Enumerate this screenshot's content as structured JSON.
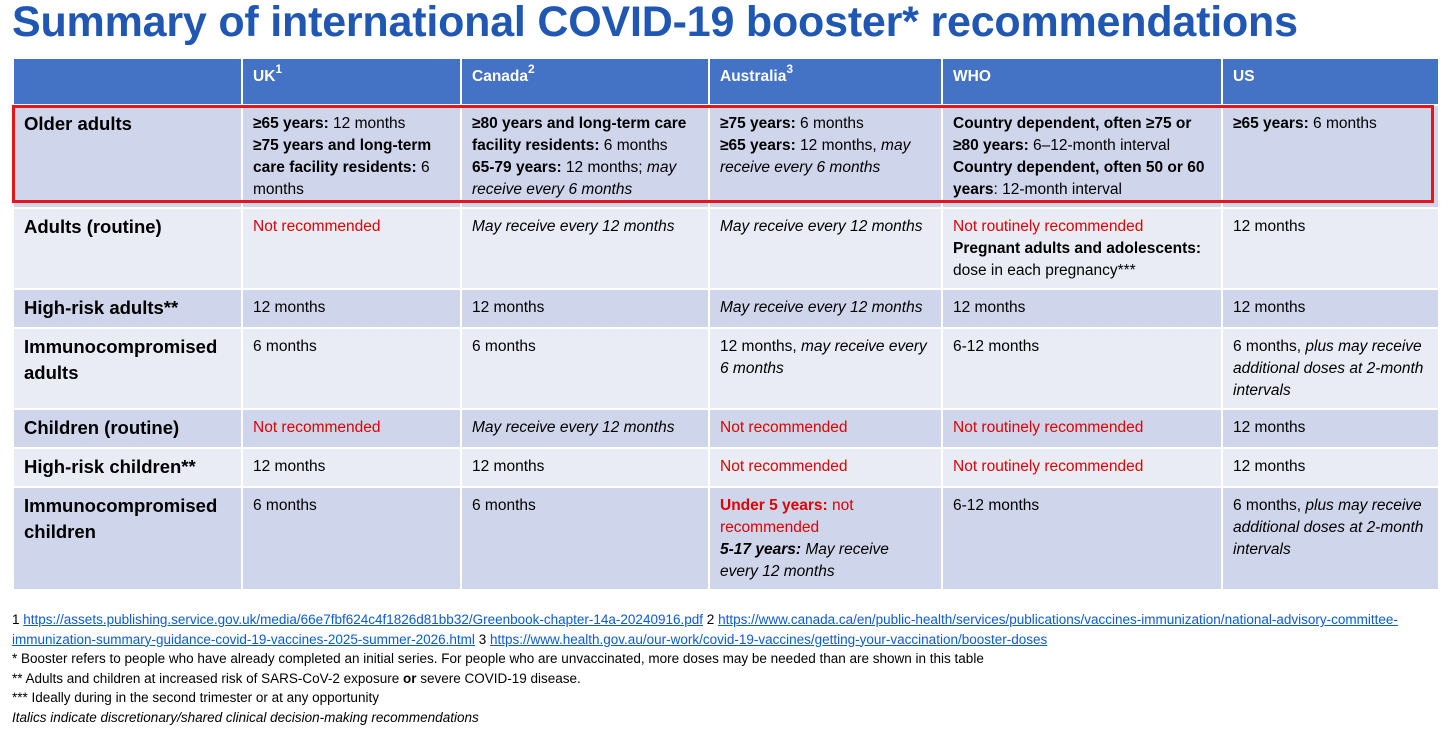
{
  "title": "Summary of international COVID-19 booster* recommendations",
  "columns": [
    {
      "label": "",
      "sup": ""
    },
    {
      "label": "UK",
      "sup": "1"
    },
    {
      "label": "Canada",
      "sup": "2"
    },
    {
      "label": "Australia",
      "sup": "3"
    },
    {
      "label": "WHO",
      "sup": ""
    },
    {
      "label": "US",
      "sup": ""
    }
  ],
  "rows": [
    {
      "label": "Older adults",
      "cells": [
        [
          [
            {
              "t": "≥65 years:",
              "s": "b"
            },
            {
              "t": " 12 months",
              "s": ""
            }
          ],
          [
            {
              "t": "≥75 years and long-term care facility residents:",
              "s": "b"
            },
            {
              "t": " 6 months",
              "s": ""
            }
          ]
        ],
        [
          [
            {
              "t": "≥80 years and long-term care facility residents:",
              "s": "b"
            },
            {
              "t": " 6 months",
              "s": ""
            }
          ],
          [
            {
              "t": "65-79 years:",
              "s": "b"
            },
            {
              "t": " 12 months; ",
              "s": ""
            },
            {
              "t": "may receive every 6 months",
              "s": "i"
            }
          ]
        ],
        [
          [
            {
              "t": "≥75 years:",
              "s": "b"
            },
            {
              "t": " 6 months",
              "s": ""
            }
          ],
          [
            {
              "t": "≥65 years:",
              "s": "b"
            },
            {
              "t": " 12 months, ",
              "s": ""
            },
            {
              "t": "may receive every 6 months",
              "s": "i"
            }
          ]
        ],
        [
          [
            {
              "t": "Country dependent, often ≥75 or ≥80 years:",
              "s": "b"
            },
            {
              "t": " 6–12-month interval",
              "s": ""
            }
          ],
          [
            {
              "t": "Country dependent, often 50 or 60 years",
              "s": "b"
            },
            {
              "t": ": 12-month interval",
              "s": ""
            }
          ]
        ],
        [
          [
            {
              "t": "≥65 years:",
              "s": "b"
            },
            {
              "t": " 6 months",
              "s": ""
            }
          ]
        ]
      ]
    },
    {
      "label": "Adults (routine)",
      "cells": [
        [
          [
            {
              "t": "Not recommended",
              "s": "red"
            }
          ]
        ],
        [
          [
            {
              "t": "May receive every 12 months",
              "s": "i"
            }
          ]
        ],
        [
          [
            {
              "t": "May receive every 12 months",
              "s": "i"
            }
          ]
        ],
        [
          [
            {
              "t": "Not routinely recommended",
              "s": "red"
            }
          ],
          [
            {
              "t": "Pregnant adults and adolescents:",
              "s": "b"
            },
            {
              "t": " dose in each pregnancy***",
              "s": ""
            }
          ]
        ],
        [
          [
            {
              "t": "12 months",
              "s": ""
            }
          ]
        ]
      ]
    },
    {
      "label": "High-risk adults**",
      "cells": [
        [
          [
            {
              "t": "12 months",
              "s": ""
            }
          ]
        ],
        [
          [
            {
              "t": "12 months",
              "s": ""
            }
          ]
        ],
        [
          [
            {
              "t": "May receive every 12 months",
              "s": "i"
            }
          ]
        ],
        [
          [
            {
              "t": "12 months",
              "s": ""
            }
          ]
        ],
        [
          [
            {
              "t": "12 months",
              "s": ""
            }
          ]
        ]
      ]
    },
    {
      "label": "Immunocompromised adults",
      "cells": [
        [
          [
            {
              "t": "6 months",
              "s": ""
            }
          ]
        ],
        [
          [
            {
              "t": "6 months",
              "s": ""
            }
          ]
        ],
        [
          [
            {
              "t": "12 months, ",
              "s": ""
            },
            {
              "t": "may receive every 6 months",
              "s": "i"
            }
          ]
        ],
        [
          [
            {
              "t": "6-12 months",
              "s": ""
            }
          ]
        ],
        [
          [
            {
              "t": "6 months, ",
              "s": ""
            },
            {
              "t": "plus may receive additional doses at 2-month intervals",
              "s": "i"
            }
          ]
        ]
      ]
    },
    {
      "label": "Children (routine)",
      "cells": [
        [
          [
            {
              "t": "Not recommended",
              "s": "red"
            }
          ]
        ],
        [
          [
            {
              "t": "May receive every 12 months",
              "s": "i"
            }
          ]
        ],
        [
          [
            {
              "t": "Not recommended",
              "s": "red"
            }
          ]
        ],
        [
          [
            {
              "t": "Not routinely recommended",
              "s": "red"
            }
          ]
        ],
        [
          [
            {
              "t": "12 months",
              "s": ""
            }
          ]
        ]
      ]
    },
    {
      "label": "High-risk children**",
      "cells": [
        [
          [
            {
              "t": "12 months",
              "s": ""
            }
          ]
        ],
        [
          [
            {
              "t": "12 months",
              "s": ""
            }
          ]
        ],
        [
          [
            {
              "t": "Not recommended",
              "s": "red"
            }
          ]
        ],
        [
          [
            {
              "t": "Not routinely recommended",
              "s": "red"
            }
          ]
        ],
        [
          [
            {
              "t": "12 months",
              "s": ""
            }
          ]
        ]
      ]
    },
    {
      "label": "Immunocompromised children",
      "cells": [
        [
          [
            {
              "t": "6 months",
              "s": ""
            }
          ]
        ],
        [
          [
            {
              "t": "6 months",
              "s": ""
            }
          ]
        ],
        [
          [
            {
              "t": "Under 5 years:",
              "s": "b red"
            },
            {
              "t": " not recommended",
              "s": "red"
            }
          ],
          [
            {
              "t": "5-17 years:",
              "s": "b i"
            },
            {
              "t": " May receive every 12 months",
              "s": "i"
            }
          ]
        ],
        [
          [
            {
              "t": "6-12 months",
              "s": ""
            }
          ]
        ],
        [
          [
            {
              "t": "6 months, ",
              "s": ""
            },
            {
              "t": "plus may receive additional doses at 2-month intervals",
              "s": "i"
            }
          ]
        ]
      ]
    }
  ],
  "footer": {
    "refs": [
      {
        "num": "1",
        "url": "https://assets.publishing.service.gov.uk/media/66e7fbf624c4f1826d81bb32/Greenbook-chapter-14a-20240916.pdf"
      },
      {
        "num": "2",
        "url": "https://www.canada.ca/en/public-health/services/publications/vaccines-immunization/national-advisory-committee-immunization-summary-guidance-covid-19-vaccines-2025-summer-2026.html"
      },
      {
        "num": "3",
        "url": "https://www.health.gov.au/our-work/covid-19-vaccines/getting-your-vaccination/booster-doses"
      }
    ],
    "note_booster": "* Booster refers to people who have already completed an initial series. For people who are unvaccinated, more doses may be needed than are shown in this table",
    "note_risk_before": "** Adults and children at increased risk of SARS-CoV-2 exposure ",
    "note_risk_or": "or",
    "note_risk_after": " severe COVID-19 disease.",
    "note_pregnancy": "*** Ideally during in the second trimester or at any opportunity",
    "note_italics": "Italics indicate discretionary/shared clinical decision-making recommendations"
  }
}
